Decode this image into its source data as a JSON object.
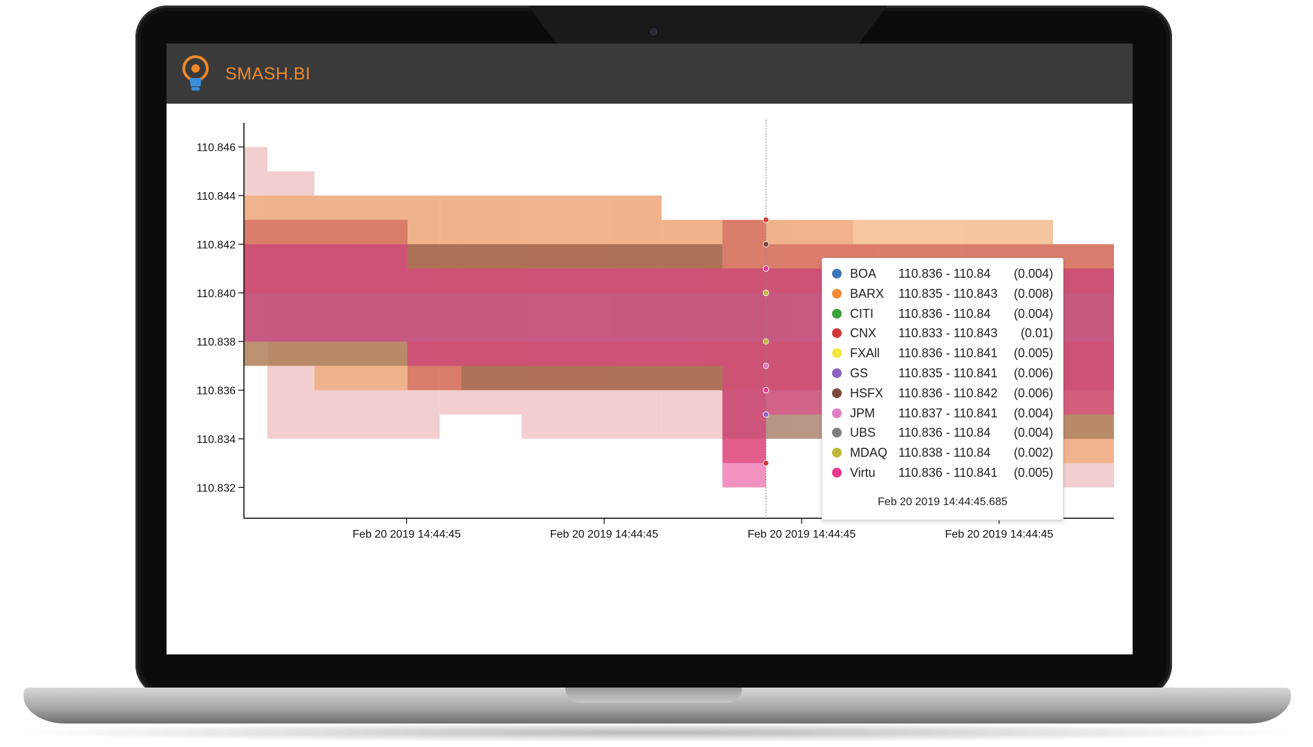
{
  "app": {
    "title": "SMASH.BI",
    "brand_color": "#f08a2a",
    "header_color": "#3a3a3a",
    "logo_icon": "lightbulb-icon"
  },
  "chart_data": {
    "type": "area",
    "title": "",
    "xlabel": "",
    "ylabel": "",
    "ylim": [
      110.8313,
      110.8467
    ],
    "y_ticks": [
      "110.846",
      "110.844",
      "110.842",
      "110.840",
      "110.838",
      "110.836",
      "110.834",
      "110.832"
    ],
    "x_ticks": [
      "Feb 20 2019 14:44:45",
      "Feb 20 2019 14:44:45",
      "Feb 20 2019 14:44:45",
      "Feb 20 2019 14:44:45"
    ],
    "grid": false,
    "series": [
      {
        "name": "BOA",
        "color": "#3b78b8",
        "bid": 110.836,
        "ask": 110.84,
        "spread": "(0.004)"
      },
      {
        "name": "BARX",
        "color": "#f08b3a",
        "bid": 110.835,
        "ask": 110.843,
        "spread": "(0.008)"
      },
      {
        "name": "CITI",
        "color": "#3aa03a",
        "bid": 110.836,
        "ask": 110.84,
        "spread": "(0.004)"
      },
      {
        "name": "CNX",
        "color": "#d23a3a",
        "bid": 110.833,
        "ask": 110.843,
        "spread": "(0.01)"
      },
      {
        "name": "FXAll",
        "color": "#f2e640",
        "bid": 110.836,
        "ask": 110.841,
        "spread": "(0.005)"
      },
      {
        "name": "GS",
        "color": "#8c64c0",
        "bid": 110.835,
        "ask": 110.841,
        "spread": "(0.006)"
      },
      {
        "name": "HSFX",
        "color": "#7a4a3e",
        "bid": 110.836,
        "ask": 110.842,
        "spread": "(0.006)"
      },
      {
        "name": "JPM",
        "color": "#e07ec2",
        "bid": 110.837,
        "ask": 110.841,
        "spread": "(0.004)"
      },
      {
        "name": "UBS",
        "color": "#7e7e7e",
        "bid": 110.836,
        "ask": 110.84,
        "spread": "(0.004)"
      },
      {
        "name": "MDAQ",
        "color": "#bdb83a",
        "bid": 110.838,
        "ask": 110.84,
        "spread": "(0.002)"
      },
      {
        "name": "Virtu",
        "color": "#e8388c",
        "bid": 110.836,
        "ask": 110.841,
        "spread": "(0.005)"
      }
    ],
    "bands": [
      {
        "color": "#e8a7a7",
        "opacity": 0.55,
        "segments": [
          [
            0,
            0.027,
            110.838,
            110.846
          ],
          [
            0.027,
            0.081,
            110.834,
            110.845
          ],
          [
            0.081,
            0.225,
            110.834,
            110.844
          ],
          [
            0.225,
            0.319,
            110.835,
            110.844
          ],
          [
            0.319,
            0.48,
            110.834,
            110.844
          ],
          [
            0.48,
            0.55,
            110.834,
            110.843
          ],
          [
            0.55,
            0.6,
            110.833,
            110.843
          ],
          [
            0.6,
            0.7,
            110.834,
            110.843
          ],
          [
            0.7,
            1.0,
            110.832,
            110.842
          ]
        ]
      },
      {
        "color": "#f0a060",
        "opacity": 0.6,
        "segments": [
          [
            0,
            0.081,
            110.837,
            110.844
          ],
          [
            0.081,
            0.225,
            110.836,
            110.844
          ],
          [
            0.225,
            0.319,
            110.836,
            110.844
          ],
          [
            0.319,
            0.48,
            110.836,
            110.844
          ],
          [
            0.48,
            0.55,
            110.836,
            110.843
          ],
          [
            0.55,
            0.93,
            110.836,
            110.843
          ],
          [
            0.93,
            1.0,
            110.833,
            110.842
          ]
        ]
      },
      {
        "color": "#c85050",
        "opacity": 0.55,
        "segments": [
          [
            0,
            0.188,
            110.838,
            110.843
          ],
          [
            0.188,
            0.55,
            110.836,
            110.842
          ],
          [
            0.55,
            0.6,
            110.833,
            110.843
          ],
          [
            0.6,
            1.0,
            110.836,
            110.842
          ]
        ]
      },
      {
        "color": "#8a6a4a",
        "opacity": 0.55,
        "segments": [
          [
            0,
            0.25,
            110.837,
            110.842
          ],
          [
            0.25,
            0.55,
            110.836,
            110.842
          ],
          [
            0.55,
            1.0,
            110.834,
            110.841
          ]
        ]
      },
      {
        "color": "#e8388c",
        "opacity": 0.55,
        "segments": [
          [
            0,
            0.188,
            110.838,
            110.842
          ],
          [
            0.188,
            0.55,
            110.837,
            110.841
          ],
          [
            0.55,
            0.6,
            110.832,
            110.841
          ],
          [
            0.6,
            1.0,
            110.835,
            110.841
          ]
        ]
      },
      {
        "color": "#c06090",
        "opacity": 0.5,
        "segments": [
          [
            0,
            1.0,
            110.838,
            110.84
          ]
        ]
      }
    ],
    "cursor": {
      "time_label": "Feb 20 2019 14:44:45.685"
    }
  }
}
